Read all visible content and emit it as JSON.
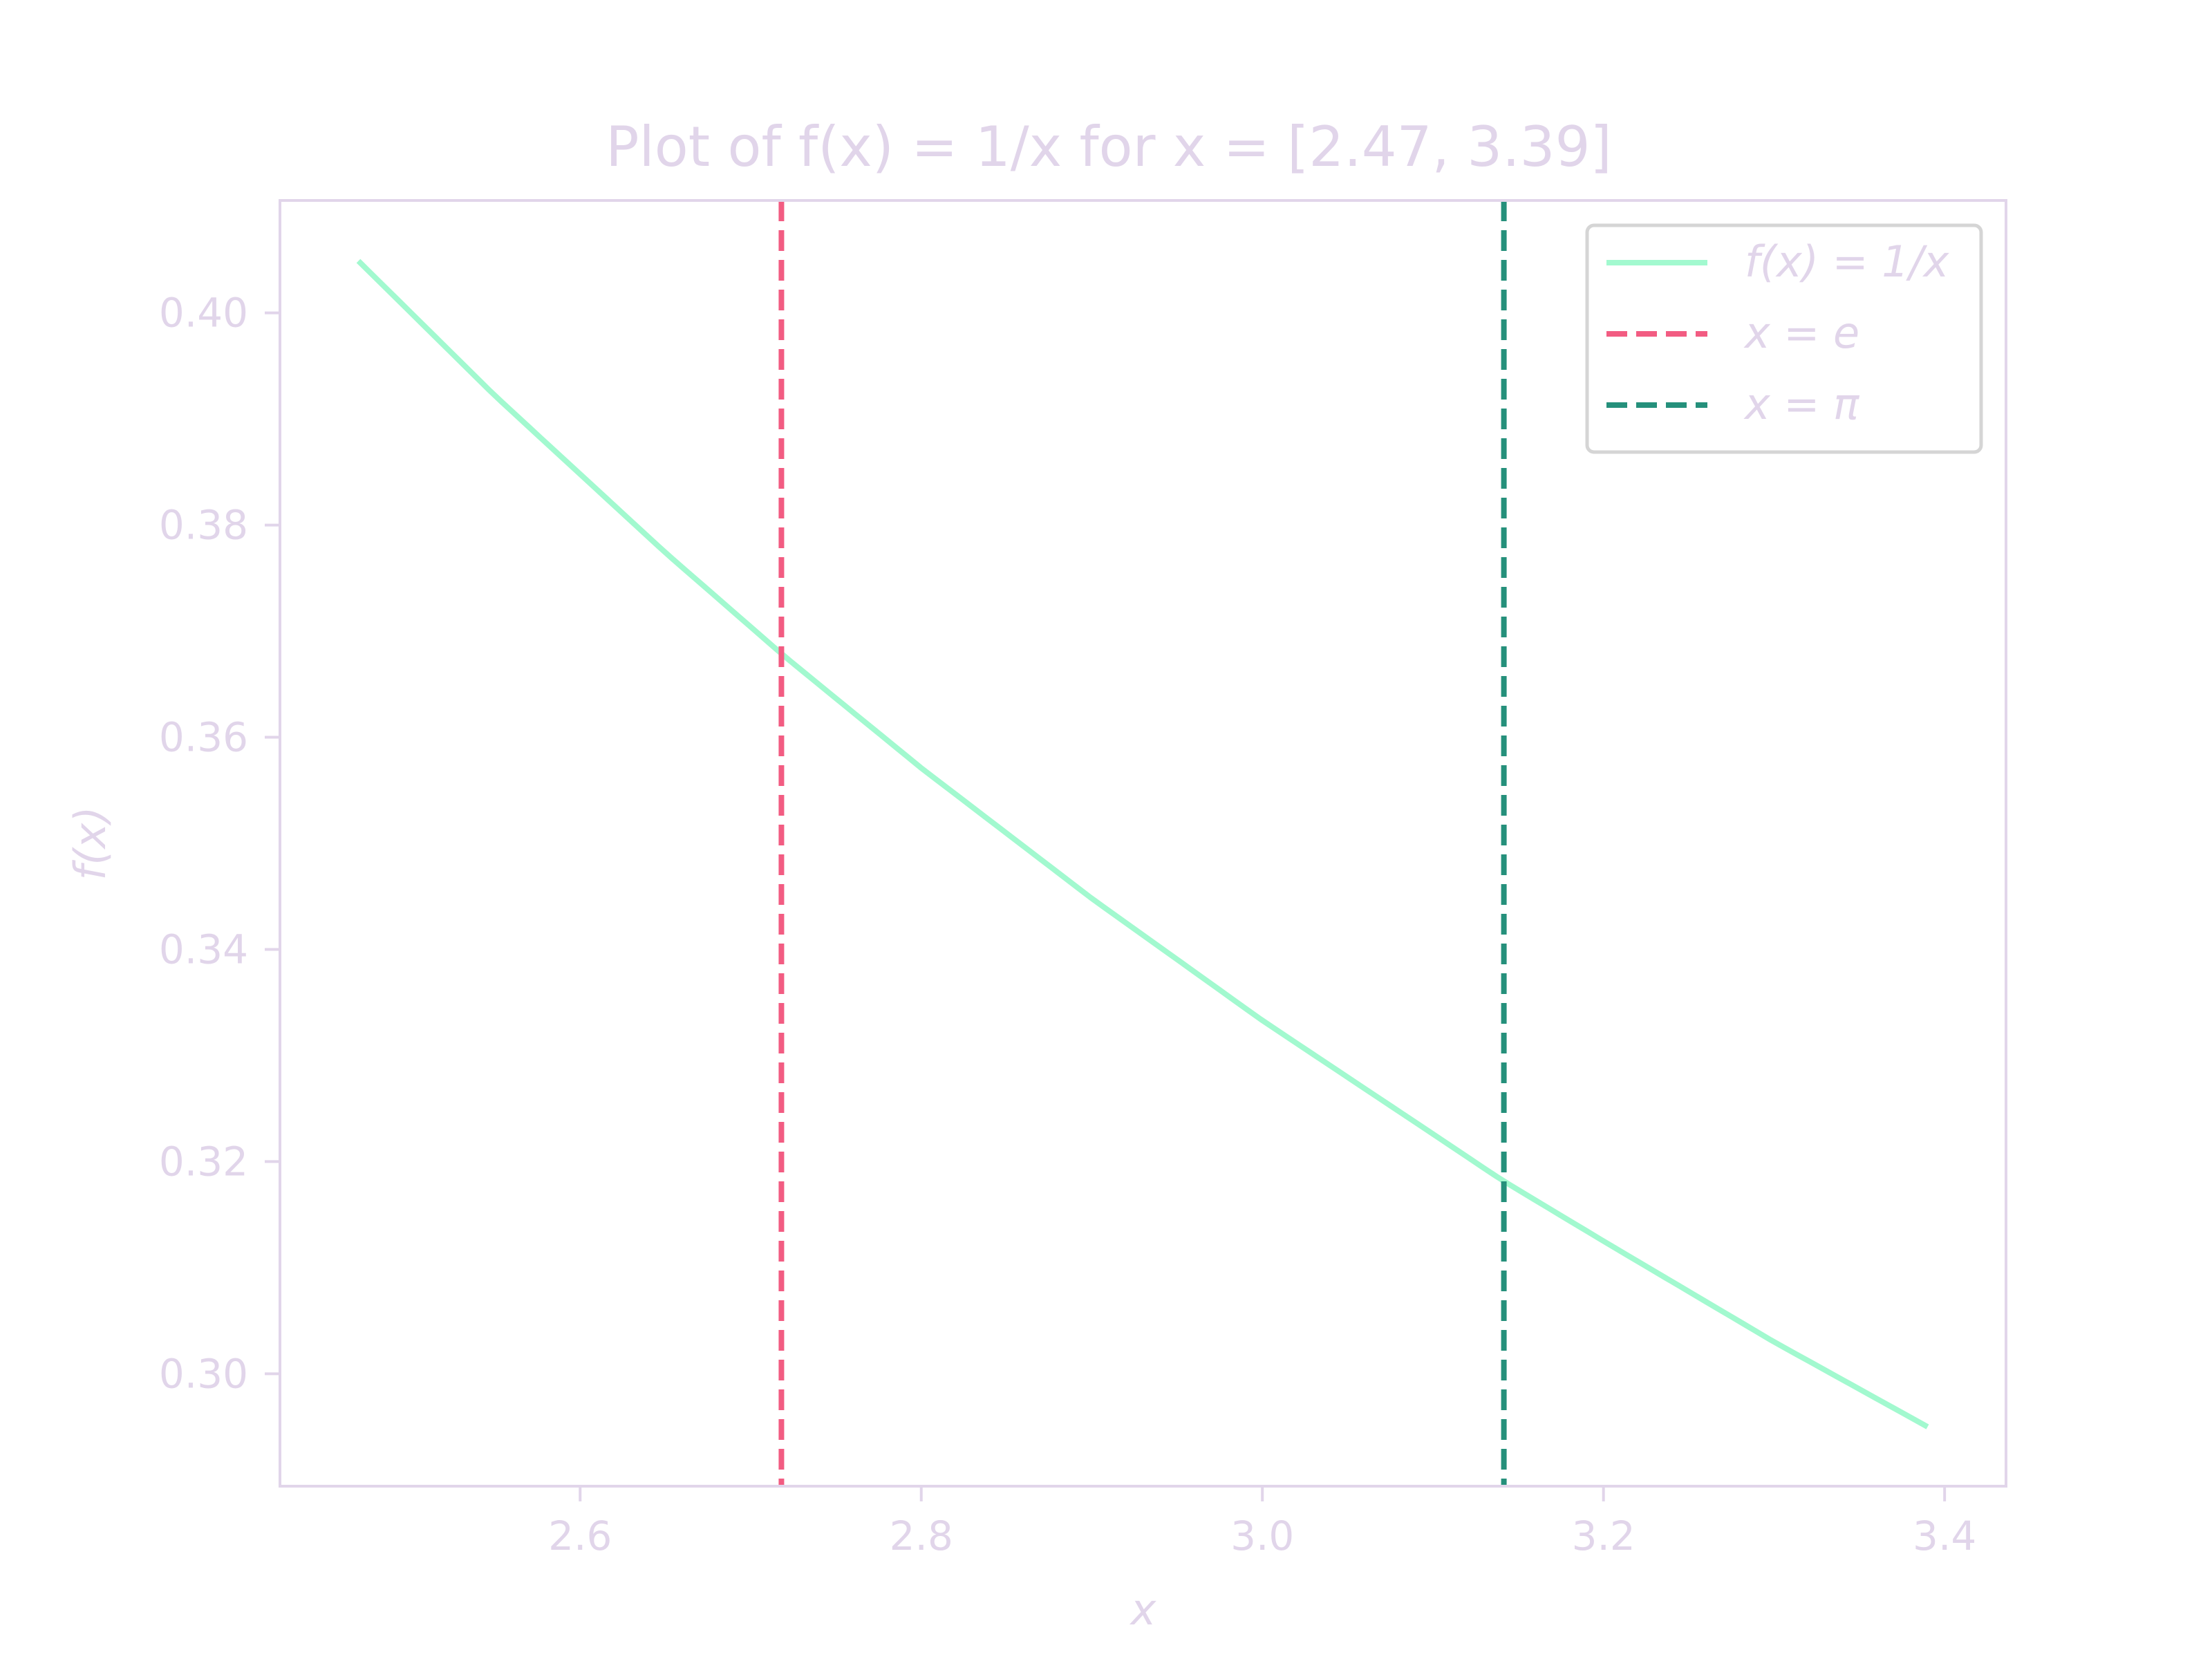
{
  "chart_data": {
    "type": "line",
    "title": "Plot of f(x) = 1/x for x = [2.47, 3.39]",
    "xlabel": "x",
    "ylabel": "f(x)",
    "xlim": [
      2.424,
      3.436
    ],
    "ylim": [
      0.2894,
      0.4106
    ],
    "xticks": [
      2.6,
      2.8,
      3.0,
      3.2,
      3.4
    ],
    "xtick_labels": [
      "2.6",
      "2.8",
      "3.0",
      "3.2",
      "3.4"
    ],
    "yticks": [
      0.3,
      0.32,
      0.34,
      0.36,
      0.38,
      0.4
    ],
    "ytick_labels": [
      "0.30",
      "0.32",
      "0.34",
      "0.36",
      "0.38",
      "0.40"
    ],
    "grid": false,
    "legend_position": "top-right",
    "series": [
      {
        "name": "f(x) = 1/x",
        "style": "solid",
        "color": "#a2f9cf",
        "x": [
          2.47,
          2.55,
          2.65,
          2.72,
          2.8,
          2.9,
          3.0,
          3.1,
          3.14,
          3.2,
          3.3,
          3.39
        ],
        "y": [
          0.4049,
          0.3922,
          0.3774,
          0.3676,
          0.3571,
          0.3448,
          0.3333,
          0.3226,
          0.3183,
          0.3125,
          0.303,
          0.295
        ]
      },
      {
        "name": "x = e",
        "style": "dashed",
        "color": "#f25c82",
        "x_value": 2.718
      },
      {
        "name": "x = π",
        "style": "dashed",
        "color": "#25907b",
        "x_value": 3.1416
      }
    ],
    "colors": {
      "axis": "#e1d5ea",
      "text": "#e1d5ea",
      "background": "#ffffff"
    }
  }
}
